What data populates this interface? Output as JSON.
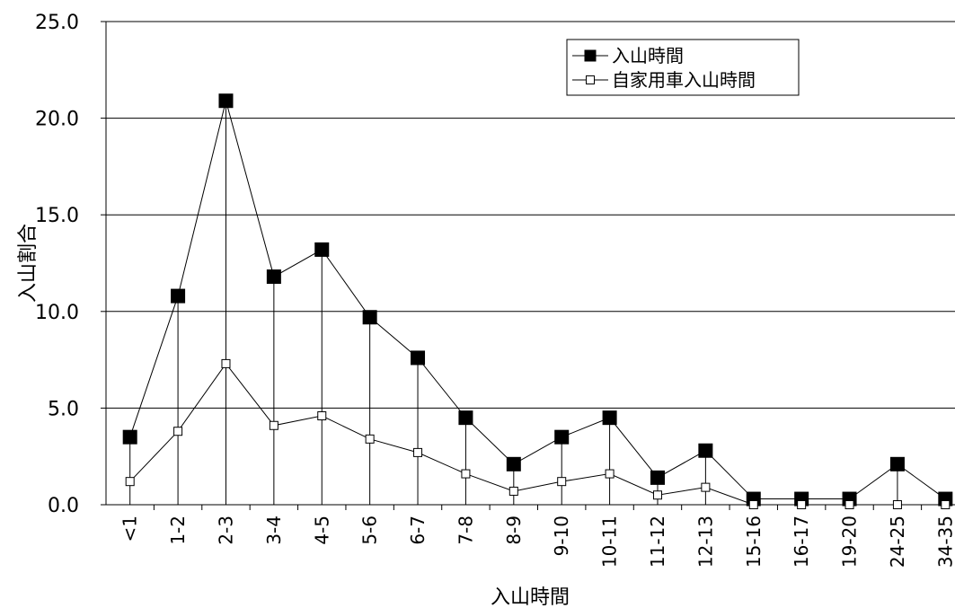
{
  "chart_data": {
    "type": "line",
    "title": "",
    "xlabel": "入山時間",
    "ylabel": "入山割合",
    "ylim": [
      0,
      25
    ],
    "yticks": [
      "0.0",
      "5.0",
      "10.0",
      "15.0",
      "20.0",
      "25.0"
    ],
    "grid": "horizontal",
    "legend_position": "top-right",
    "categories": [
      "<1",
      "1-2",
      "2-3",
      "3-4",
      "4-5",
      "5-6",
      "6-7",
      "7-8",
      "8-9",
      "9-10",
      "10-11",
      "11-12",
      "12-13",
      "15-16",
      "16-17",
      "19-20",
      "24-25",
      "34-35"
    ],
    "series": [
      {
        "name": "入山時間",
        "marker": "filled-square",
        "color": "#000000",
        "values": [
          3.5,
          10.8,
          20.9,
          11.8,
          13.2,
          9.7,
          7.6,
          4.5,
          2.1,
          3.5,
          4.5,
          1.4,
          2.8,
          0.3,
          0.3,
          0.3,
          2.1,
          0.3
        ]
      },
      {
        "name": "自家用車入山時間",
        "marker": "open-square",
        "color": "#000000",
        "values": [
          1.2,
          3.8,
          7.3,
          4.1,
          4.6,
          3.4,
          2.7,
          1.6,
          0.7,
          1.2,
          1.6,
          0.5,
          0.9,
          0.0,
          0.0,
          0.0,
          0.0,
          0.0
        ]
      }
    ]
  }
}
